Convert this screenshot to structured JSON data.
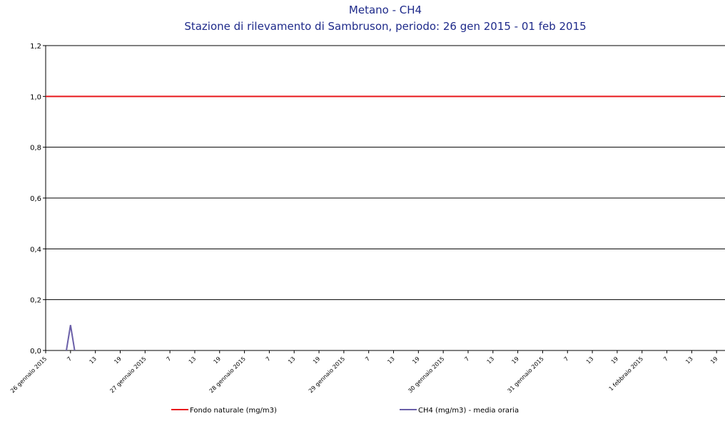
{
  "chart_data": {
    "type": "line",
    "title": "Metano - CH4",
    "subtitle": "Stazione di rilevamento di Sambruson, periodo: 26 gen 2015 - 01 feb 2015",
    "series": [
      {
        "name": "Fondo naturale  (mg/m3)",
        "color": "#e8191c",
        "x": [
          0,
          163
        ],
        "values": [
          1,
          1
        ]
      },
      {
        "name": "CH4 (mg/m3)  - media oraria",
        "color": "#6a5fa8",
        "x": [
          5,
          6,
          7
        ],
        "values": [
          0,
          0.1,
          0
        ]
      }
    ],
    "xlim": [
      0,
      163
    ],
    "xticks": [
      {
        "value": 0,
        "label": "26 gennaio 2015"
      },
      {
        "value": 6,
        "label": "7"
      },
      {
        "value": 12,
        "label": "13"
      },
      {
        "value": 18,
        "label": "19"
      },
      {
        "value": 24,
        "label": "27 gennaio 2015"
      },
      {
        "value": 30,
        "label": "7"
      },
      {
        "value": 36,
        "label": "13"
      },
      {
        "value": 42,
        "label": "19"
      },
      {
        "value": 48,
        "label": "28 gennaio 2015"
      },
      {
        "value": 54,
        "label": "7"
      },
      {
        "value": 60,
        "label": "13"
      },
      {
        "value": 66,
        "label": "19"
      },
      {
        "value": 72,
        "label": "29 gennaio 2015"
      },
      {
        "value": 78,
        "label": "7"
      },
      {
        "value": 84,
        "label": "13"
      },
      {
        "value": 90,
        "label": "19"
      },
      {
        "value": 96,
        "label": "30 gennaio 2015"
      },
      {
        "value": 102,
        "label": "7"
      },
      {
        "value": 108,
        "label": "13"
      },
      {
        "value": 114,
        "label": "19"
      },
      {
        "value": 120,
        "label": "31 gennaio 2015"
      },
      {
        "value": 126,
        "label": "7"
      },
      {
        "value": 132,
        "label": "13"
      },
      {
        "value": 138,
        "label": "19"
      },
      {
        "value": 144,
        "label": "1 febbraio 2015"
      },
      {
        "value": 150,
        "label": "7"
      },
      {
        "value": 156,
        "label": "13"
      },
      {
        "value": 162,
        "label": "19"
      }
    ],
    "ylim": [
      0,
      1.2
    ],
    "yticks": [
      {
        "value": 0,
        "label": "0,0"
      },
      {
        "value": 0.2,
        "label": "0,2"
      },
      {
        "value": 0.4,
        "label": "0,4"
      },
      {
        "value": 0.6,
        "label": "0,6"
      },
      {
        "value": 0.8,
        "label": "0,8"
      },
      {
        "value": 1,
        "label": "1,0"
      },
      {
        "value": 1.2,
        "label": "1,2"
      }
    ],
    "grid": true
  }
}
